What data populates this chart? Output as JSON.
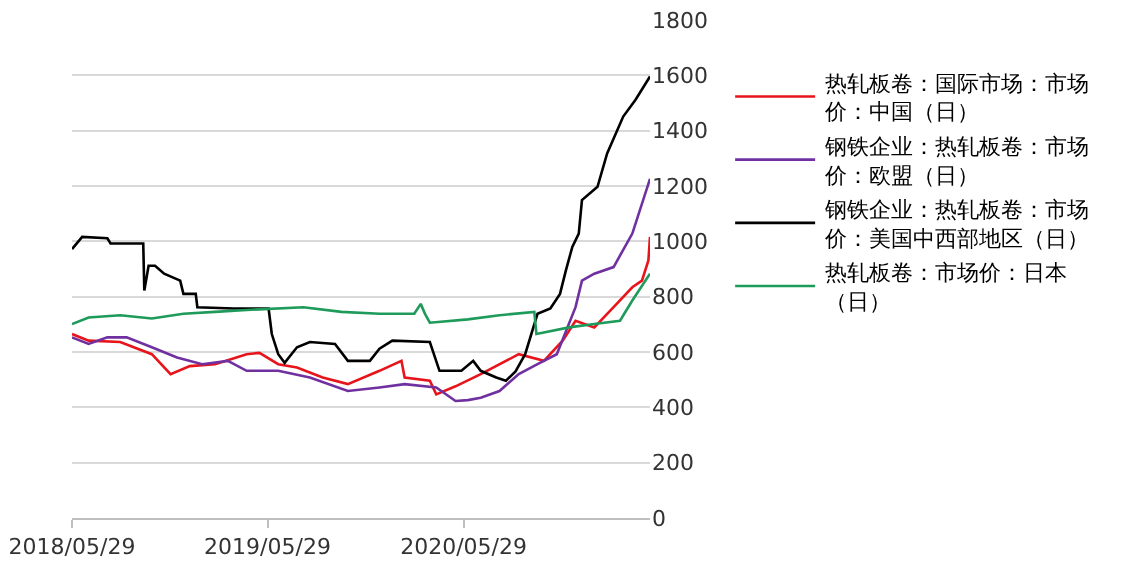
{
  "chart_data": {
    "type": "line",
    "xlim": [
      "2018-05-29",
      "2021-05-12"
    ],
    "xticks": [
      {
        "value": "2018-05-29",
        "label": "2018/05/29"
      },
      {
        "value": "2019-05-29",
        "label": "2019/05/29"
      },
      {
        "value": "2020-05-29",
        "label": "2020/05/29"
      }
    ],
    "ylim": [
      0,
      1800
    ],
    "yticks": [
      0,
      200,
      400,
      600,
      800,
      1000,
      1200,
      1400,
      1600,
      1800
    ],
    "grid": "y",
    "legend": "right",
    "line_style": "solid",
    "marker": "none",
    "series": [
      {
        "name": "热轧板卷：国际市场：市场价：中国（日）",
        "color": "#e8141c",
        "x": [
          "2018-05-29",
          "2018-06-29",
          "2018-08-27",
          "2018-10-25",
          "2018-11-29",
          "2019-01-04",
          "2019-02-20",
          "2019-04-20",
          "2019-05-14",
          "2019-06-18",
          "2019-07-23",
          "2019-09-09",
          "2019-10-26",
          "2019-12-24",
          "2020-02-03",
          "2020-02-09",
          "2020-03-27",
          "2020-04-08",
          "2020-05-14",
          "2020-06-30",
          "2020-09-09",
          "2020-10-26",
          "2020-11-30",
          "2020-12-24",
          "2021-01-28",
          "2021-03-05",
          "2021-04-09",
          "2021-04-27",
          "2021-05-09",
          "2021-05-12"
        ],
        "values": [
          665,
          641,
          636,
          592,
          520,
          549,
          556,
          592,
          597,
          556,
          544,
          508,
          484,
          532,
          568,
          508,
          496,
          447,
          476,
          520,
          592,
          568,
          641,
          713,
          689,
          762,
          834,
          858,
          931,
          1016
        ]
      },
      {
        "name": "钢铁企业：热轧板卷：市场价：欧盟（日）",
        "color": "#7030a0",
        "x": [
          "2018-05-29",
          "2018-06-29",
          "2018-08-03",
          "2018-09-08",
          "2018-10-25",
          "2018-12-11",
          "2019-01-27",
          "2019-03-16",
          "2019-04-20",
          "2019-06-18",
          "2019-08-16",
          "2019-10-26",
          "2019-12-24",
          "2020-02-09",
          "2020-04-08",
          "2020-05-14",
          "2020-06-06",
          "2020-06-30",
          "2020-08-04",
          "2020-09-09",
          "2020-10-14",
          "2020-11-19",
          "2020-12-24",
          "2021-01-05",
          "2021-01-28",
          "2021-03-05",
          "2021-04-09",
          "2021-05-12"
        ],
        "values": [
          653,
          629,
          653,
          653,
          617,
          580,
          556,
          568,
          532,
          532,
          508,
          459,
          472,
          484,
          472,
          423,
          426,
          435,
          459,
          520,
          556,
          592,
          762,
          858,
          883,
          907,
          1028,
          1226
        ]
      },
      {
        "name": "钢铁企业：热轧板卷：市场价：美国中西部地区（日）",
        "color": "#000000",
        "x": [
          "2018-05-29",
          "2018-06-17",
          "2018-08-03",
          "2018-08-09",
          "2018-10-09",
          "2018-10-11",
          "2018-10-19",
          "2018-10-31",
          "2018-11-17",
          "2018-12-17",
          "2018-12-23",
          "2019-01-15",
          "2019-01-18",
          "2019-03-27",
          "2019-05-31",
          "2019-06-06",
          "2019-06-18",
          "2019-06-30",
          "2019-07-23",
          "2019-08-16",
          "2019-10-02",
          "2019-10-26",
          "2019-12-06",
          "2019-12-24",
          "2020-01-17",
          "2020-03-27",
          "2020-04-14",
          "2020-05-25",
          "2020-06-16",
          "2020-06-30",
          "2020-07-29",
          "2020-08-16",
          "2020-09-03",
          "2020-09-21",
          "2020-10-14",
          "2020-11-07",
          "2020-11-25",
          "2020-12-06",
          "2020-12-18",
          "2020-12-30",
          "2021-01-05",
          "2021-02-03",
          "2021-02-21",
          "2021-03-23",
          "2021-04-15",
          "2021-05-12"
        ],
        "values": [
          972,
          1016,
          1011,
          992,
          992,
          822,
          912,
          912,
          883,
          858,
          810,
          810,
          762,
          757,
          757,
          665,
          592,
          561,
          617,
          636,
          629,
          568,
          568,
          612,
          641,
          636,
          532,
          532,
          568,
          532,
          508,
          496,
          530,
          592,
          738,
          757,
          810,
          895,
          980,
          1028,
          1149,
          1197,
          1318,
          1451,
          1512,
          1596
        ]
      },
      {
        "name": "热轧板卷：市场价：日本（日）",
        "color": "#1e9a5a",
        "x": [
          "2018-05-29",
          "2018-06-29",
          "2018-08-27",
          "2018-10-25",
          "2018-12-23",
          "2019-02-20",
          "2019-04-20",
          "2019-08-04",
          "2019-10-14",
          "2019-12-24",
          "2020-02-27",
          "2020-03-10",
          "2020-03-18",
          "2020-03-27",
          "2020-06-06",
          "2020-08-04",
          "2020-10-08",
          "2020-10-12",
          "2020-12-12",
          "2021-01-28",
          "2021-03-17",
          "2021-04-09",
          "2021-05-12"
        ],
        "values": [
          701,
          725,
          733,
          721,
          738,
          745,
          752,
          762,
          745,
          738,
          738,
          774,
          738,
          706,
          718,
          733,
          745,
          665,
          689,
          701,
          713,
          786,
          883
        ]
      }
    ]
  }
}
